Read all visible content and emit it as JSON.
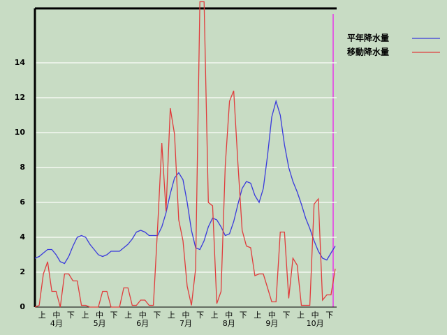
{
  "chart_data": {
    "type": "line",
    "x": [
      0,
      3,
      6,
      9,
      12,
      15,
      18,
      21,
      24,
      27,
      30,
      33,
      36,
      39,
      42,
      45,
      48,
      51,
      54,
      57,
      60,
      63,
      66,
      69,
      72,
      75,
      78,
      81,
      84,
      87,
      90,
      93,
      96,
      99,
      102,
      105,
      108,
      111,
      114,
      117,
      120,
      123,
      126,
      129,
      132,
      135,
      138,
      141,
      144,
      147,
      150,
      153,
      156,
      159,
      162,
      165,
      168,
      171,
      174,
      177,
      180,
      183,
      186,
      189,
      192,
      195,
      198,
      201,
      204,
      207,
      210,
      213
    ],
    "xlim": [
      0,
      214
    ],
    "ylim": [
      0,
      17.12
    ],
    "yticks": [
      0,
      2,
      4,
      6,
      8,
      10,
      12,
      14
    ],
    "grid": true,
    "dekads": [
      "上",
      "中",
      "下",
      "上",
      "中",
      "下",
      "上",
      "中",
      "下",
      "上",
      "中",
      "下",
      "上",
      "中",
      "下",
      "上",
      "中",
      "下",
      "上",
      "中",
      "下"
    ],
    "months": [
      "4月",
      "5月",
      "6月",
      "7月",
      "8月",
      "9月",
      "10月"
    ],
    "series": [
      {
        "name": "平年降水量",
        "color": "#3a3adc",
        "values": [
          2.8,
          2.9,
          3.1,
          3.3,
          3.3,
          3.0,
          2.6,
          2.5,
          2.9,
          3.5,
          4.0,
          4.1,
          4.0,
          3.6,
          3.3,
          3.0,
          2.9,
          3.0,
          3.2,
          3.2,
          3.2,
          3.4,
          3.6,
          3.9,
          4.3,
          4.4,
          4.3,
          4.1,
          4.1,
          4.1,
          4.6,
          5.4,
          6.5,
          7.4,
          7.7,
          7.3,
          6.0,
          4.4,
          3.4,
          3.3,
          3.8,
          4.6,
          5.1,
          5.0,
          4.6,
          4.1,
          4.2,
          4.9,
          5.9,
          6.8,
          7.2,
          7.1,
          6.4,
          6.0,
          6.8,
          8.7,
          10.9,
          11.8,
          11.0,
          9.3,
          8.0,
          7.2,
          6.6,
          5.9,
          5.1,
          4.5,
          3.8,
          3.2,
          2.8,
          2.7,
          3.1,
          3.5
        ]
      },
      {
        "name": "移動降水量",
        "color": "#e03c3c",
        "values": [
          0,
          0.1,
          1.9,
          2.6,
          0.9,
          0.9,
          0,
          1.9,
          1.9,
          1.5,
          1.5,
          0.1,
          0.1,
          0,
          0,
          0,
          0.9,
          0.9,
          0,
          0,
          0,
          1.1,
          1.1,
          0.1,
          0.1,
          0.4,
          0.4,
          0.1,
          0.1,
          4.5,
          9.4,
          5.5,
          11.4,
          9.9,
          5.0,
          3.8,
          1.2,
          0.1,
          2.2,
          17.5,
          17.5,
          6.0,
          5.8,
          0.2,
          0.9,
          8.1,
          11.8,
          12.4,
          8.2,
          4.4,
          3.5,
          3.4,
          1.8,
          1.9,
          1.9,
          1.1,
          0.3,
          0.3,
          4.3,
          4.3,
          0.5,
          2.8,
          2.4,
          0.1,
          0.1,
          0.1,
          5.9,
          6.2,
          0.4,
          0.7,
          0.7,
          2.2
        ]
      }
    ]
  }
}
